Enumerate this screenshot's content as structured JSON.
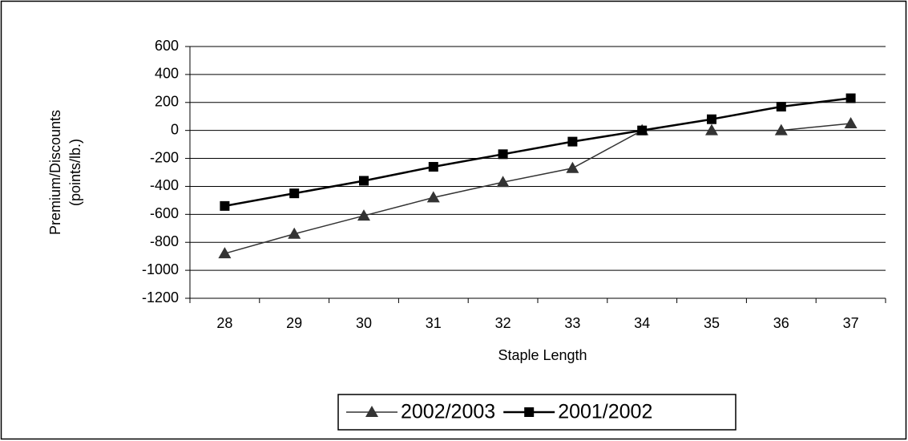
{
  "chart_data": {
    "type": "line",
    "x_label": "Staple Length",
    "y_label": [
      "Premium/Discounts",
      "(points/lb.)"
    ],
    "categories": [
      "28",
      "29",
      "30",
      "31",
      "32",
      "33",
      "34",
      "35",
      "36",
      "37"
    ],
    "series": [
      {
        "name": "2002/2003",
        "color": "#333333",
        "marker": "triangle",
        "values": [
          -880,
          -740,
          -610,
          -480,
          -370,
          -270,
          0,
          0,
          0,
          50
        ]
      },
      {
        "name": "2001/2002",
        "color": "#000000",
        "marker": "square",
        "values": [
          -540,
          -450,
          -360,
          -260,
          -170,
          -80,
          0,
          80,
          170,
          230
        ]
      }
    ],
    "ylim": [
      -1200,
      600
    ],
    "yticks": [
      -1200,
      -1000,
      -800,
      -600,
      -400,
      -200,
      0,
      200,
      400,
      600
    ],
    "grid": true,
    "legend": "bottom"
  }
}
